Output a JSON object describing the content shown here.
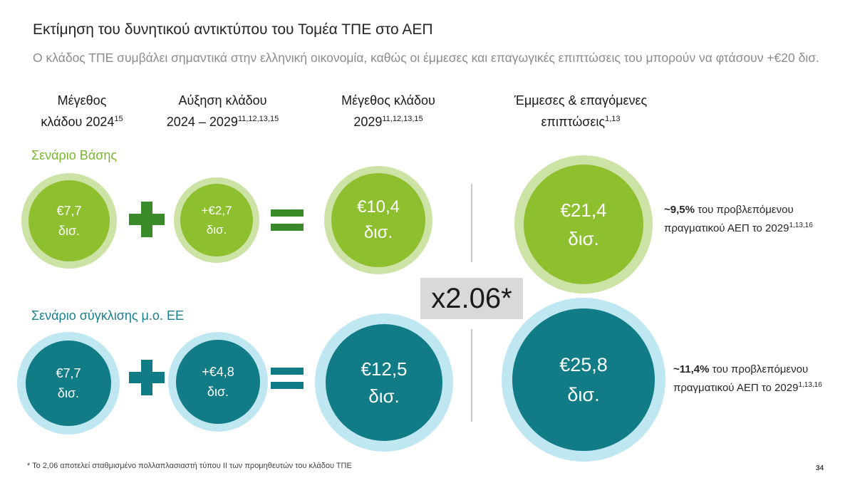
{
  "title": "Εκτίμηση του δυνητικού αντικτύπου του Τομέα ΤΠΕ στο ΑΕΠ",
  "subtitle": "Ο κλάδος ΤΠΕ συμβάλει σημαντικά στην ελληνική οικονομία, καθώς οι έμμεσες και επαγωγικές επιπτώσεις του μπορούν να φτάσουν +€20 δισ.",
  "columns": [
    {
      "line1": "Μέγεθος",
      "line2": "κλάδου 2024",
      "sup": "15"
    },
    {
      "line1": "Αύξηση κλάδου",
      "line2": "2024 – 2029",
      "sup": "11,12,13,15"
    },
    {
      "line1": "Μέγεθος κλάδου",
      "line2": "2029",
      "sup": "11,12,13,15"
    },
    {
      "line1": "Έμμεσες & επαγόμενες",
      "line2": "επιπτώσεις",
      "sup": "1,13"
    }
  ],
  "scenarios": {
    "base": {
      "label": "Σενάριο Βάσης",
      "size_2024": {
        "value": "€7,7",
        "unit": "δισ."
      },
      "growth": {
        "value": "+€2,7",
        "unit": "δισ."
      },
      "size_2029": {
        "value": "€10,4",
        "unit": "δισ."
      },
      "impact": {
        "value": "€21,4",
        "unit": "δισ."
      },
      "note_bold": "~9,5%",
      "note_text": " του προβλεπόμενου",
      "note_line2": "πραγματικού ΑΕΠ το 2029",
      "note_sup": "1,13,16"
    },
    "eu": {
      "label": "Σενάριο σύγκλισης μ.ο. ΕΕ",
      "size_2024": {
        "value": "€7,7",
        "unit": "δισ."
      },
      "growth": {
        "value": "+€4,8",
        "unit": "δισ."
      },
      "size_2029": {
        "value": "€12,5",
        "unit": "δισ."
      },
      "impact": {
        "value": "€25,8",
        "unit": "δισ."
      },
      "note_bold": "~11,4%",
      "note_text": " του προβλεπόμενου",
      "note_line2": "πραγματικού ΑΕΠ το 2029",
      "note_sup": "1,13,16"
    }
  },
  "multiplier": "x2.06*",
  "footnote": "* Το 2,06 αποτελεί σταθμισμένο πολλαπλασιαστή τύπου ΙΙ των προμηθευτών του κλάδου ΤΠΕ",
  "page_number": "34",
  "colors": {
    "green": "#8dbf2e",
    "green_light": "#cde3a6",
    "plus_green": "#3a8a2a",
    "teal": "#117b86",
    "teal_light": "#bfe7f2",
    "scenario_base_label": "#7ab531",
    "scenario_eu_label": "#1a7f8e"
  }
}
